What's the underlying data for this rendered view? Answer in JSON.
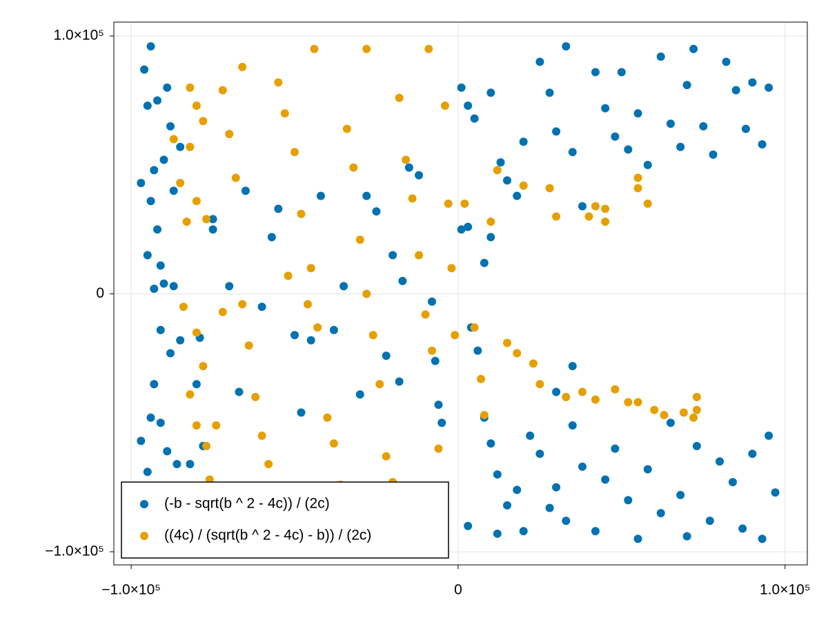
{
  "chart_data": {
    "type": "scatter",
    "xlim": [
      -105300,
      106800
    ],
    "ylim": [
      -105100,
      105400
    ],
    "xticks": [
      {
        "value": -100000,
        "label": "−1.0×10⁵"
      },
      0,
      {
        "value": 100000,
        "label": "1.0×10⁵"
      }
    ],
    "yticks": [
      {
        "value": -100000,
        "label": "−1.0×10⁵"
      },
      0,
      {
        "value": 100000,
        "label": "1.0×10⁵"
      }
    ],
    "grid": true,
    "legend": "lower left",
    "series": [
      {
        "name": "(-b - sqrt(b ^ 2 - 4c)) / (2c)",
        "color": "#0072b2",
        "x": [
          -96000,
          -94000,
          -95000,
          -92000,
          -89000,
          -88000,
          -85000,
          -94000,
          -97000,
          -93000,
          -90000,
          -87000,
          -92000,
          -95000,
          -91000,
          -93000,
          -90000,
          -87000,
          -91000,
          -85000,
          -88000,
          -93000,
          -94000,
          -91000,
          -97000,
          -95000,
          -89000,
          -86000,
          -82000,
          -78000,
          -80000,
          -79000,
          -75000,
          -75000,
          -70000,
          -67000,
          -65000,
          -60000,
          -57000,
          -55000,
          -50000,
          -48000,
          -45000,
          -42000,
          -38000,
          -35000,
          -30000,
          -28000,
          -25000,
          -22000,
          -18000,
          -20000,
          -17000,
          -15000,
          -12000,
          -8000,
          -5000,
          -7000,
          -6000,
          1000,
          3000,
          5000,
          10000,
          13000,
          15000,
          18000,
          20000,
          25000,
          28000,
          30000,
          33000,
          35000,
          38000,
          42000,
          45000,
          48000,
          50000,
          52000,
          55000,
          58000,
          62000,
          65000,
          68000,
          70000,
          72000,
          75000,
          78000,
          82000,
          85000,
          88000,
          90000,
          93000,
          95000,
          4000,
          6000,
          8000,
          10000,
          12000,
          15000,
          18000,
          20000,
          22000,
          25000,
          28000,
          30000,
          33000,
          35000,
          38000,
          42000,
          45000,
          48000,
          52000,
          55000,
          58000,
          62000,
          65000,
          68000,
          70000,
          73000,
          77000,
          80000,
          84000,
          87000,
          90000,
          93000,
          95000,
          97000,
          3000,
          12000,
          1000,
          3000,
          8000,
          10000,
          30000,
          35000
        ],
        "y": [
          87000,
          96000,
          73000,
          75000,
          80000,
          65000,
          57000,
          36000,
          43000,
          48000,
          52000,
          40000,
          25000,
          15000,
          11000,
          2000,
          4000,
          3000,
          -14000,
          -18000,
          -23000,
          -35000,
          -48000,
          -50000,
          -57000,
          -69000,
          -61000,
          -66000,
          -66000,
          -59000,
          -35000,
          -17000,
          25000,
          29000,
          3000,
          -38000,
          40000,
          -5000,
          22000,
          33000,
          -16000,
          -46000,
          -18000,
          38000,
          -14000,
          3000,
          -39000,
          38000,
          32000,
          -24000,
          -34000,
          15000,
          5000,
          49000,
          46000,
          -3000,
          -50000,
          -26000,
          -43000,
          80000,
          73000,
          68000,
          78000,
          51000,
          44000,
          38000,
          59000,
          90000,
          78000,
          63000,
          96000,
          55000,
          34000,
          86000,
          72000,
          61000,
          86000,
          56000,
          70000,
          50000,
          92000,
          66000,
          57000,
          81000,
          95000,
          65000,
          54000,
          90000,
          79000,
          64000,
          82000,
          58000,
          80000,
          -13000,
          -22000,
          -48000,
          -58000,
          -70000,
          -82000,
          -76000,
          -92000,
          -55000,
          -62000,
          -83000,
          -75000,
          -88000,
          -51000,
          -67000,
          -92000,
          -72000,
          -60000,
          -80000,
          -95000,
          -68000,
          -85000,
          -50000,
          -78000,
          -94000,
          -59000,
          -88000,
          -65000,
          -73000,
          -91000,
          -62000,
          -95000,
          -55000,
          -77000,
          -90000,
          -93000,
          25000,
          26000,
          12000,
          22000,
          -38000,
          -28000
        ]
      },
      {
        "name": "((4c) / (sqrt(b ^ 2 - 4c) - b)) / (2c)",
        "color": "#e69f00",
        "x": [
          -82000,
          -80000,
          -78000,
          -82000,
          -85000,
          -80000,
          -77000,
          -83000,
          -84000,
          -80000,
          -78000,
          -82000,
          -80000,
          -77000,
          -74000,
          -76000,
          -72000,
          -70000,
          -68000,
          -66000,
          -64000,
          -62000,
          -60000,
          -58000,
          -55000,
          -53000,
          -50000,
          -48000,
          -45000,
          -43000,
          -40000,
          -38000,
          -36000,
          -34000,
          -32000,
          -30000,
          -28000,
          -26000,
          -24000,
          -22000,
          -20000,
          -18000,
          -16000,
          -14000,
          -12000,
          -10000,
          -8000,
          -6000,
          -4000,
          -3000,
          -2000,
          -1000,
          -44000,
          -28000,
          -9000,
          -66000,
          -52000,
          -46000,
          -72000,
          -87000,
          2000,
          5000,
          7000,
          8000,
          10000,
          12000,
          15000,
          18000,
          20000,
          23000,
          25000,
          28000,
          30000,
          33000,
          38000,
          40000,
          42000,
          45000,
          48000,
          52000,
          55000,
          60000,
          63000,
          69000,
          73000,
          73000,
          72000,
          55000,
          55000,
          58000,
          45000,
          42000
        ],
        "y": [
          80000,
          73000,
          67000,
          57000,
          43000,
          36000,
          29000,
          28000,
          -5000,
          -15000,
          -28000,
          -39000,
          -51000,
          -59000,
          -51000,
          -72000,
          79000,
          62000,
          45000,
          -4000,
          -20000,
          -40000,
          -55000,
          -66000,
          82000,
          70000,
          55000,
          31000,
          10000,
          -13000,
          -48000,
          -58000,
          -74000,
          64000,
          49000,
          21000,
          0,
          -16000,
          -35000,
          -63000,
          -73000,
          76000,
          52000,
          37000,
          15000,
          -8000,
          -22000,
          -60000,
          73000,
          35000,
          10000,
          -16000,
          95000,
          95000,
          95000,
          88000,
          7000,
          -4000,
          -7000,
          60000,
          35000,
          -13000,
          -33000,
          -47000,
          28000,
          48000,
          -19000,
          -23000,
          42000,
          -27000,
          -35000,
          41000,
          30000,
          -40000,
          -38000,
          30000,
          -41000,
          28000,
          -37000,
          -42000,
          -42000,
          -45000,
          -47000,
          -46000,
          -45000,
          -40000,
          -48000,
          45000,
          41000,
          35000,
          33000,
          34000
        ]
      }
    ]
  }
}
